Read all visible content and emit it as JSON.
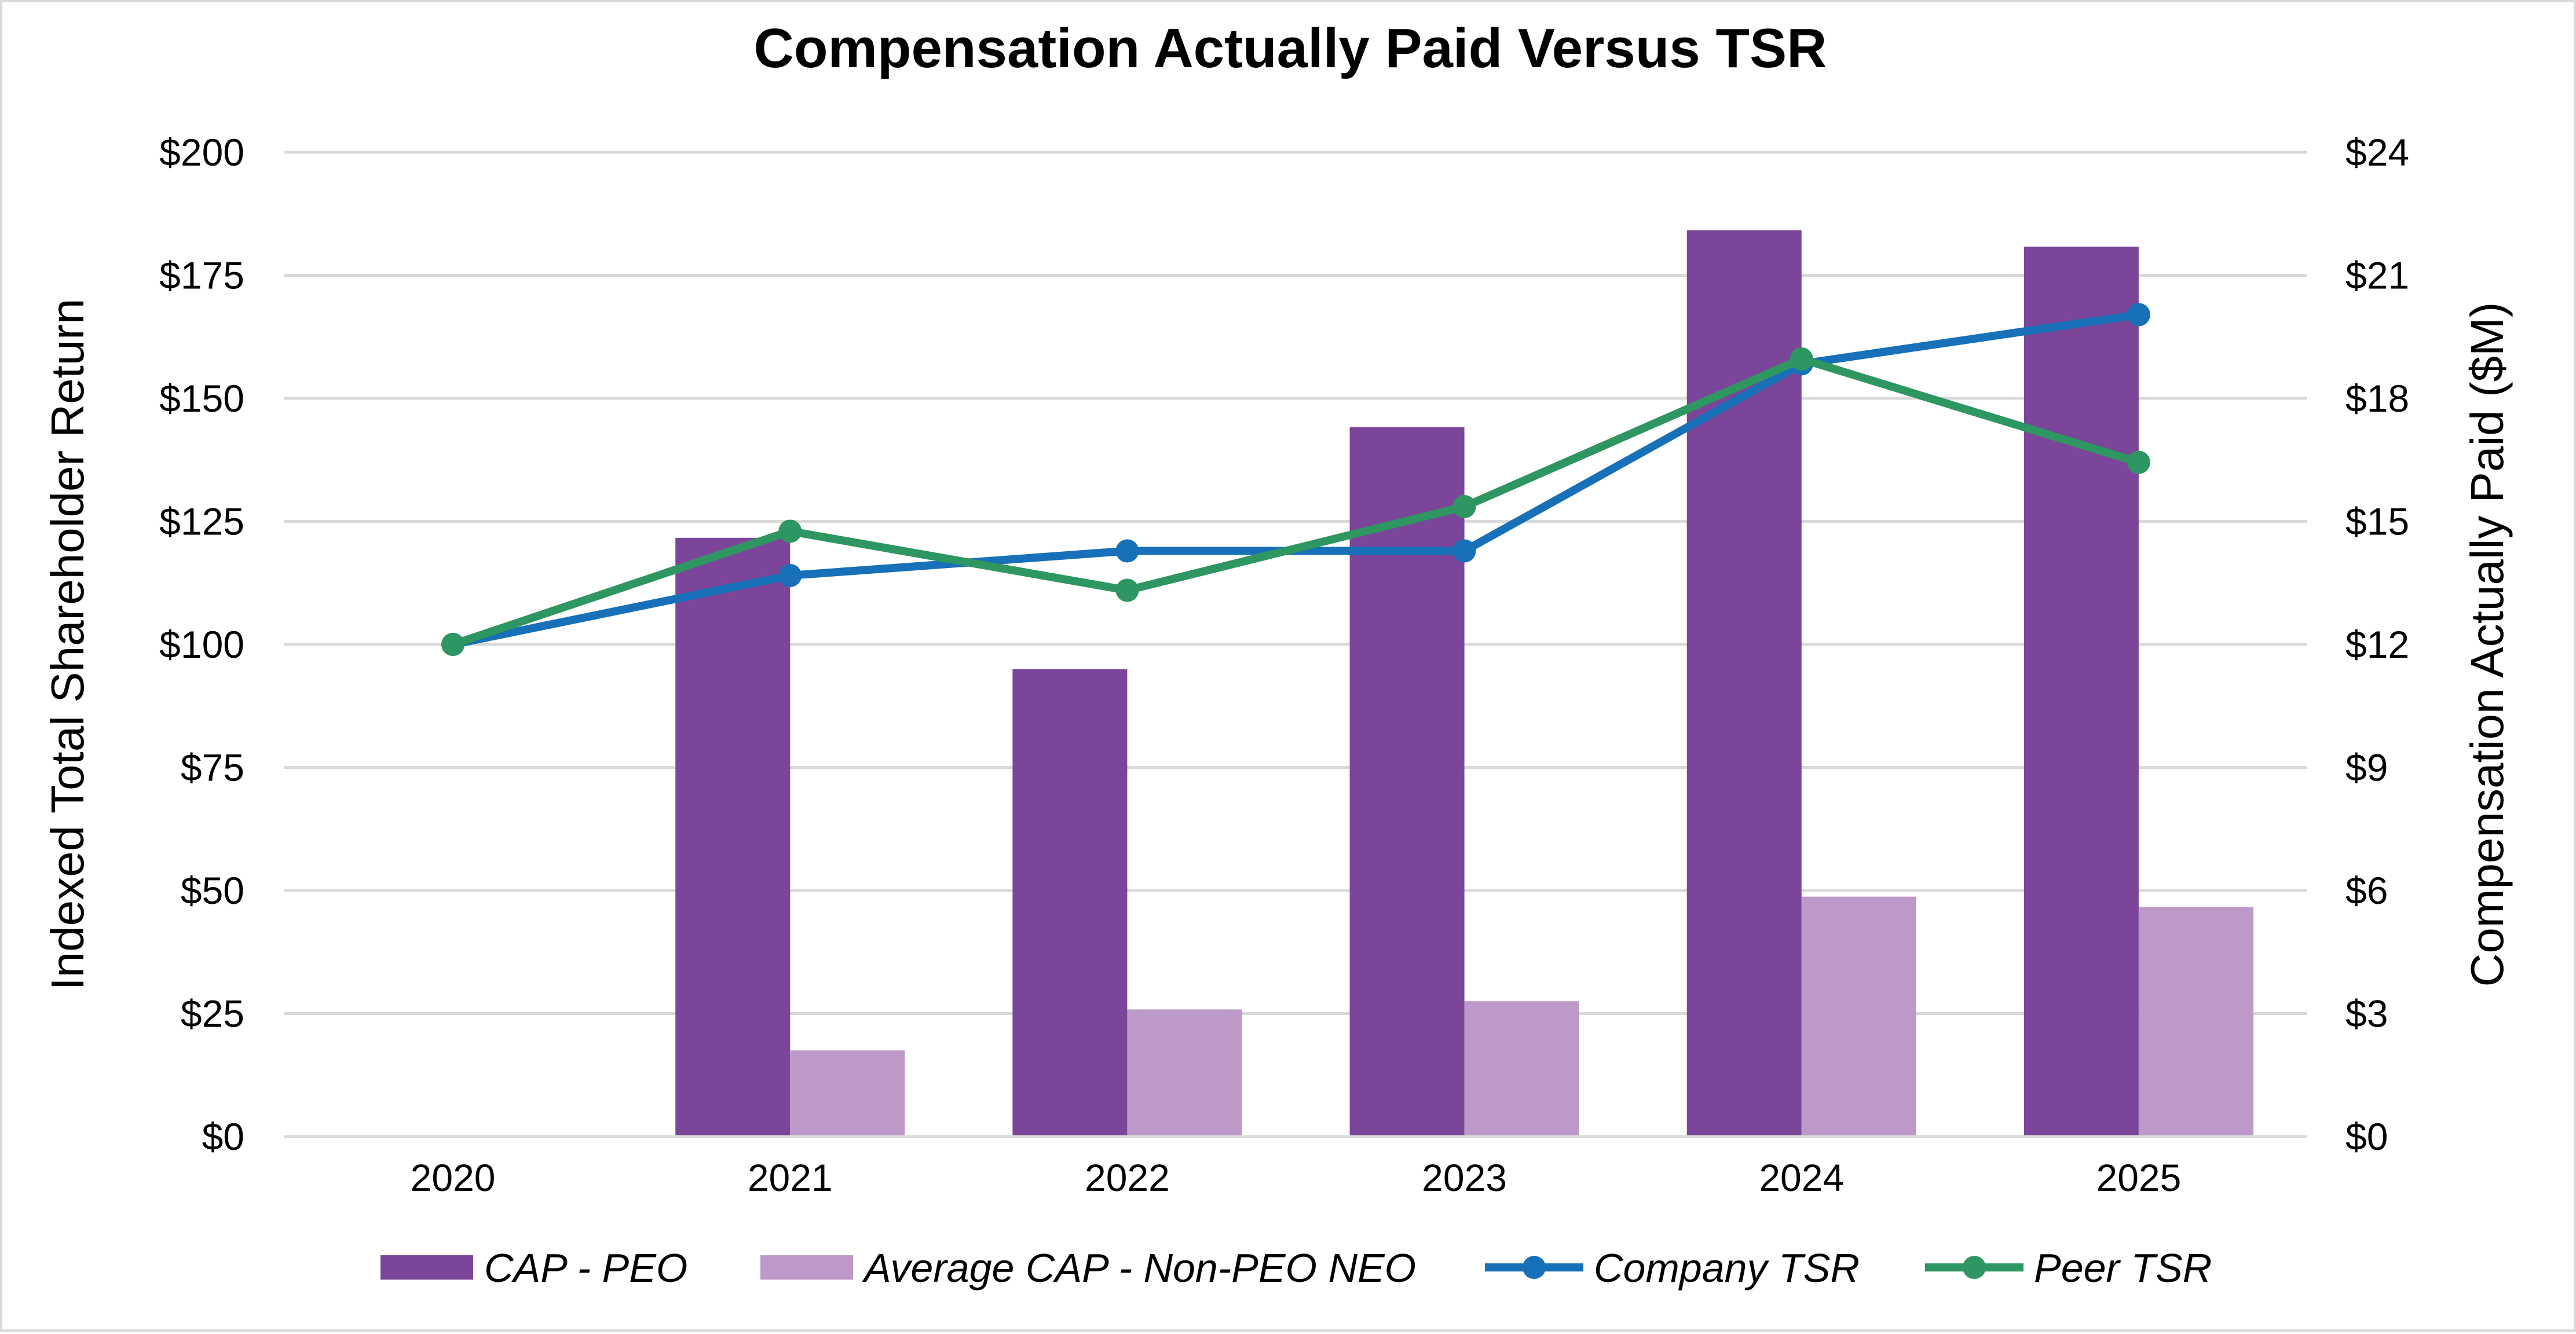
{
  "chart_data": {
    "type": "bar",
    "title": "Compensation Actually Paid Versus TSR",
    "categories": [
      "2020",
      "2021",
      "2022",
      "2023",
      "2024",
      "2025"
    ],
    "ylabel_left": "Indexed Total Shareholder Return",
    "ylabel_right": "Compensation Actually Paid ($M)",
    "ylim_left": [
      0,
      200
    ],
    "ylim_right": [
      0,
      24
    ],
    "left_ticks": [
      "$0",
      "$25",
      "$50",
      "$75",
      "$100",
      "$125",
      "$150",
      "$175",
      "$200"
    ],
    "left_tick_values": [
      0,
      25,
      50,
      75,
      100,
      125,
      150,
      175,
      200
    ],
    "right_ticks": [
      "$0",
      "$3",
      "$6",
      "$9",
      "$12",
      "$15",
      "$18",
      "$21",
      "$24"
    ],
    "right_tick_values": [
      0,
      3,
      6,
      9,
      12,
      15,
      18,
      21,
      24
    ],
    "grid": true,
    "legend_position": "bottom",
    "bar_series": [
      {
        "name": "CAP - PEO",
        "axis": "right",
        "color": "#7b4699",
        "values": [
          null,
          14.6,
          11.4,
          17.3,
          22.1,
          21.7
        ]
      },
      {
        "name": "Average CAP - Non-PEO NEO",
        "axis": "right",
        "color": "#bd99c9",
        "values": [
          null,
          2.1,
          3.1,
          3.3,
          5.85,
          5.6
        ]
      }
    ],
    "line_series": [
      {
        "name": "Company TSR",
        "axis": "left",
        "color": "#1770b8",
        "values": [
          100,
          114,
          119,
          119,
          157,
          167
        ]
      },
      {
        "name": "Peer TSR",
        "axis": "left",
        "color": "#2e9660",
        "values": [
          100,
          123,
          111,
          128,
          158,
          137
        ]
      }
    ]
  }
}
